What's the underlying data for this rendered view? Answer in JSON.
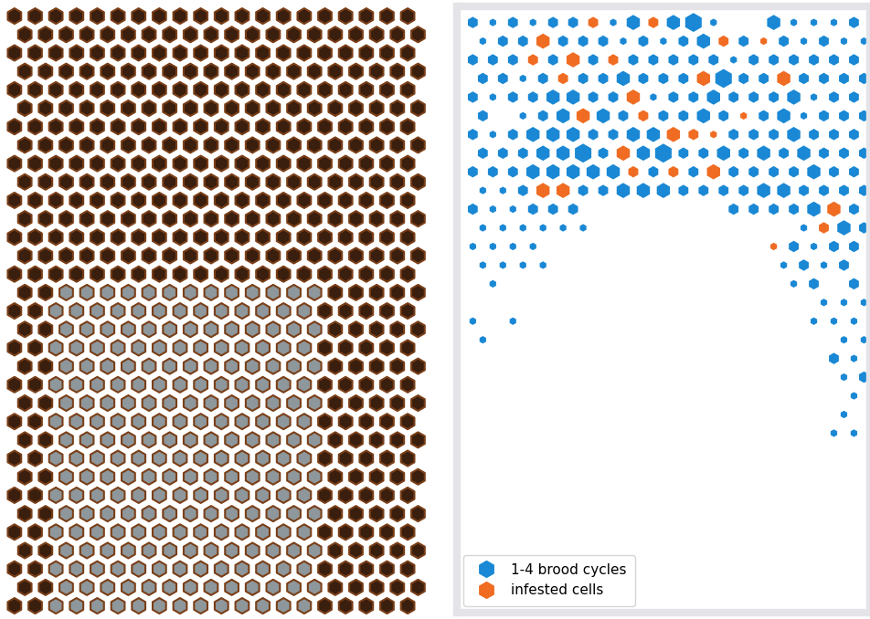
{
  "chart_data": {
    "type": "hex_map",
    "series": [
      {
        "name": "1-4 brood cycles",
        "color": "#1a88d4"
      },
      {
        "name": "infested cells",
        "color": "#ef6c22"
      }
    ],
    "cycles": [
      [
        2,
        1,
        2,
        1,
        2,
        2,
        2,
        1,
        3,
        2,
        3,
        4,
        1,
        0,
        0,
        3,
        1,
        1,
        1,
        2
      ],
      [
        1,
        2,
        2,
        3,
        2,
        2,
        2,
        1,
        2,
        1,
        2,
        3,
        2,
        2,
        1,
        2,
        1,
        2,
        1,
        1
      ],
      [
        2,
        2,
        2,
        2,
        2,
        3,
        2,
        2,
        2,
        2,
        2,
        2,
        2,
        1,
        2,
        2,
        2,
        2,
        2,
        2
      ],
      [
        2,
        2,
        1,
        2,
        2,
        2,
        2,
        3,
        2,
        2,
        2,
        3,
        4,
        2,
        2,
        3,
        2,
        2,
        2,
        2
      ],
      [
        2,
        1,
        2,
        2,
        3,
        3,
        2,
        2,
        3,
        1,
        2,
        2,
        3,
        2,
        2,
        2,
        3,
        1,
        2,
        2
      ],
      [
        2,
        0,
        1,
        2,
        3,
        3,
        3,
        2,
        2,
        2,
        2,
        3,
        2,
        1,
        2,
        3,
        1,
        2,
        2,
        2
      ],
      [
        2,
        1,
        2,
        3,
        3,
        3,
        2,
        2,
        3,
        3,
        3,
        2,
        1,
        2,
        2,
        2,
        3,
        2,
        2,
        2
      ],
      [
        2,
        2,
        2,
        3,
        3,
        4,
        2,
        3,
        3,
        4,
        2,
        2,
        3,
        2,
        3,
        2,
        3,
        2,
        2,
        2
      ],
      [
        2,
        2,
        2,
        3,
        3,
        3,
        3,
        3,
        2,
        2,
        2,
        2,
        3,
        2,
        2,
        2,
        2,
        3,
        2,
        2
      ],
      [
        1,
        1,
        2,
        3,
        3,
        2,
        2,
        3,
        3,
        3,
        2,
        2,
        2,
        2,
        3,
        3,
        2,
        2,
        2,
        2
      ],
      [
        2,
        1,
        1,
        2,
        2,
        2,
        0,
        0,
        0,
        0,
        0,
        0,
        0,
        2,
        2,
        2,
        2,
        3,
        3,
        2
      ],
      [
        1,
        1,
        1,
        1,
        1,
        1,
        0,
        0,
        0,
        0,
        0,
        0,
        0,
        0,
        0,
        0,
        1,
        2,
        3,
        2
      ],
      [
        1,
        1,
        1,
        1,
        0,
        0,
        0,
        0,
        0,
        0,
        0,
        0,
        0,
        0,
        0,
        1,
        2,
        1,
        2,
        2
      ],
      [
        1,
        1,
        1,
        1,
        0,
        0,
        0,
        0,
        0,
        0,
        0,
        0,
        0,
        0,
        0,
        1,
        2,
        1,
        2,
        0
      ],
      [
        0,
        1,
        0,
        0,
        0,
        0,
        0,
        0,
        0,
        0,
        0,
        0,
        0,
        0,
        0,
        0,
        1,
        2,
        0,
        2
      ],
      [
        0,
        0,
        0,
        0,
        0,
        0,
        0,
        0,
        0,
        0,
        0,
        0,
        0,
        0,
        0,
        0,
        0,
        1,
        1,
        1
      ],
      [
        1,
        0,
        1,
        0,
        0,
        0,
        0,
        0,
        0,
        0,
        0,
        0,
        0,
        0,
        0,
        0,
        0,
        1,
        1,
        1
      ],
      [
        1,
        0,
        0,
        0,
        0,
        0,
        0,
        0,
        0,
        0,
        0,
        0,
        0,
        0,
        0,
        0,
        0,
        0,
        1,
        1
      ],
      [
        0,
        0,
        0,
        0,
        0,
        0,
        0,
        0,
        0,
        0,
        0,
        0,
        0,
        0,
        0,
        0,
        0,
        0,
        2,
        1
      ],
      [
        0,
        0,
        0,
        0,
        0,
        0,
        0,
        0,
        0,
        0,
        0,
        0,
        0,
        0,
        0,
        0,
        0,
        0,
        1,
        2
      ],
      [
        0,
        0,
        0,
        0,
        0,
        0,
        0,
        0,
        0,
        0,
        0,
        0,
        0,
        0,
        0,
        0,
        0,
        0,
        0,
        1
      ],
      [
        0,
        0,
        0,
        0,
        0,
        0,
        0,
        0,
        0,
        0,
        0,
        0,
        0,
        0,
        0,
        0,
        0,
        0,
        1,
        0
      ],
      [
        0,
        0,
        0,
        0,
        0,
        0,
        0,
        0,
        0,
        0,
        0,
        0,
        0,
        0,
        0,
        0,
        0,
        0,
        1,
        1
      ]
    ],
    "infested": [
      [
        0,
        6
      ],
      [
        0,
        9
      ],
      [
        1,
        3
      ],
      [
        1,
        12
      ],
      [
        1,
        14
      ],
      [
        2,
        3
      ],
      [
        2,
        5
      ],
      [
        2,
        7
      ],
      [
        3,
        4
      ],
      [
        3,
        11
      ],
      [
        3,
        15
      ],
      [
        4,
        8
      ],
      [
        5,
        5
      ],
      [
        5,
        8
      ],
      [
        5,
        13
      ],
      [
        6,
        10
      ],
      [
        6,
        11
      ],
      [
        6,
        12
      ],
      [
        7,
        7
      ],
      [
        8,
        8
      ],
      [
        8,
        10
      ],
      [
        8,
        12
      ],
      [
        9,
        3
      ],
      [
        9,
        4
      ],
      [
        10,
        18
      ],
      [
        11,
        17
      ],
      [
        12,
        15
      ]
    ],
    "legend": "lower left",
    "tick_labels": false
  }
}
